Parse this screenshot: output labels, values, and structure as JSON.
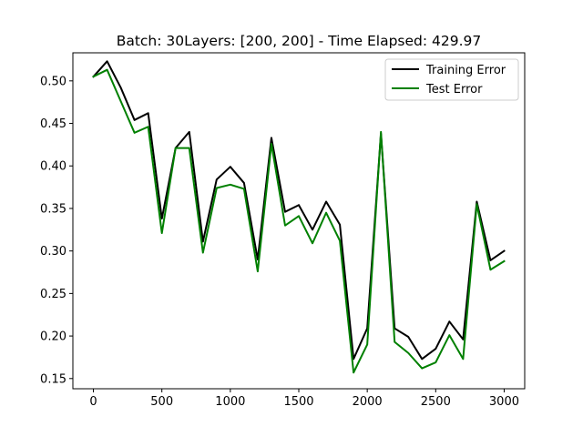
{
  "chart_data": {
    "type": "line",
    "title": "Batch: 30Layers: [200, 200] - Time Elapsed: 429.97",
    "xlabel": "",
    "ylabel": "",
    "xlim": [
      -150,
      3150
    ],
    "ylim": [
      0.138,
      0.533
    ],
    "x_ticks": [
      0,
      500,
      1000,
      1500,
      2000,
      2500,
      3000
    ],
    "x_tick_labels": [
      "0",
      "500",
      "1000",
      "1500",
      "2000",
      "2500",
      "3000"
    ],
    "y_ticks": [
      0.15,
      0.2,
      0.25,
      0.3,
      0.35,
      0.4,
      0.45,
      0.5
    ],
    "y_tick_labels": [
      "0.15",
      "0.20",
      "0.25",
      "0.30",
      "0.35",
      "0.40",
      "0.45",
      "0.50"
    ],
    "grid": false,
    "legend_position": "upper-right",
    "x": [
      0,
      100,
      200,
      300,
      400,
      500,
      600,
      700,
      800,
      900,
      1000,
      1100,
      1200,
      1300,
      1400,
      1500,
      1600,
      1700,
      1800,
      1900,
      2000,
      2100,
      2200,
      2300,
      2400,
      2500,
      2600,
      2700,
      2800,
      2900,
      3000
    ],
    "series": [
      {
        "name": "Training Error",
        "color": "#000000",
        "values": [
          0.505,
          0.523,
          0.492,
          0.454,
          0.462,
          0.338,
          0.421,
          0.44,
          0.311,
          0.384,
          0.399,
          0.38,
          0.29,
          0.433,
          0.346,
          0.354,
          0.325,
          0.358,
          0.331,
          0.173,
          0.209,
          0.438,
          0.209,
          0.199,
          0.173,
          0.185,
          0.217,
          0.196,
          0.358,
          0.289,
          0.3
        ]
      },
      {
        "name": "Test Error",
        "color": "#008000",
        "values": [
          0.505,
          0.513,
          0.476,
          0.439,
          0.446,
          0.321,
          0.421,
          0.421,
          0.298,
          0.374,
          0.378,
          0.373,
          0.276,
          0.426,
          0.33,
          0.341,
          0.309,
          0.345,
          0.312,
          0.157,
          0.19,
          0.44,
          0.193,
          0.18,
          0.162,
          0.169,
          0.201,
          0.173,
          0.355,
          0.278,
          0.288
        ]
      }
    ]
  }
}
